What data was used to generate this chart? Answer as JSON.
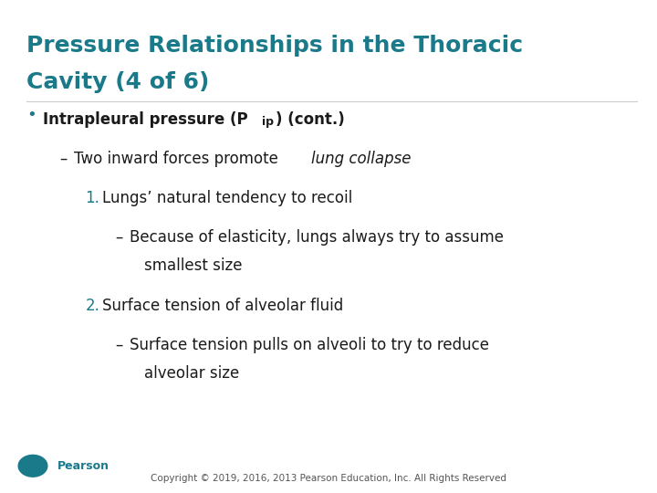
{
  "title_line1": "Pressure Relationships in the Thoracic",
  "title_line2": "Cavity (4 of 6)",
  "title_color": "#1a7a8a",
  "title_fontsize": 18,
  "background_color": "#ffffff",
  "text_color": "#1a1a1a",
  "teal_color": "#1a7a8a",
  "copyright_text": "Copyright © 2019, 2016, 2013 Pearson Education, Inc. All Rights Reserved",
  "pearson_color": "#1a7a8a",
  "body_fontsize": 12,
  "small_fontsize": 9
}
